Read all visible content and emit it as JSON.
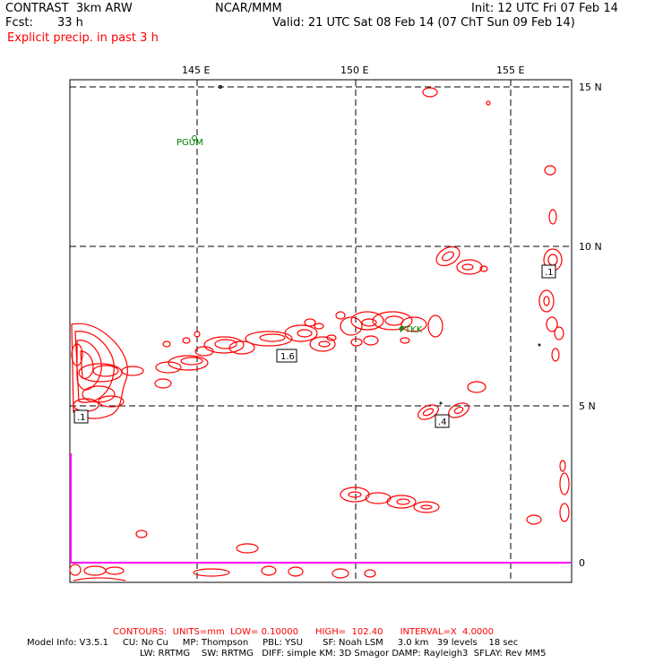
{
  "header": {
    "model": "CONTRAST  3km ARW",
    "org": "NCAR/MMM",
    "init": "Init: 12 UTC Fri 07 Feb 14",
    "fcst_label": "Fcst:",
    "fcst_value": "33 h",
    "valid": "Valid: 21 UTC Sat 08 Feb 14 (07 ChT Sun 09 Feb 14)",
    "field": "Explicit precip. in past 3 h"
  },
  "map": {
    "lon_labels": [
      "145 E",
      "150 E",
      "155 E"
    ],
    "lat_labels": [
      "15 N",
      "10 N",
      "5 N",
      "0"
    ],
    "stations": [
      "PGUM",
      "PTKK"
    ],
    "contour_labels": [
      "1.6",
      ".1",
      ".1",
      ".4"
    ],
    "colors": {
      "precip": "#ff0000",
      "station": "#008000",
      "boundary": "#ff00ff",
      "grid": "#000000"
    }
  },
  "footer": {
    "contours_line": "CONTOURS:  UNITS=mm  LOW= 0.10000      HIGH=  102.40      INTERVAL=X  4.0000",
    "model_info_1": "Model Info: V3.5.1     CU: No Cu     MP: Thompson     PBL: YSU       SF: Noah LSM     3.0 km   39 levels    18 sec",
    "model_info_2": "LW: RRTMG    SW: RRTMG   DIFF: simple KM: 3D Smagor DAMP: Rayleigh3  SFLAY: Rev MM5"
  }
}
